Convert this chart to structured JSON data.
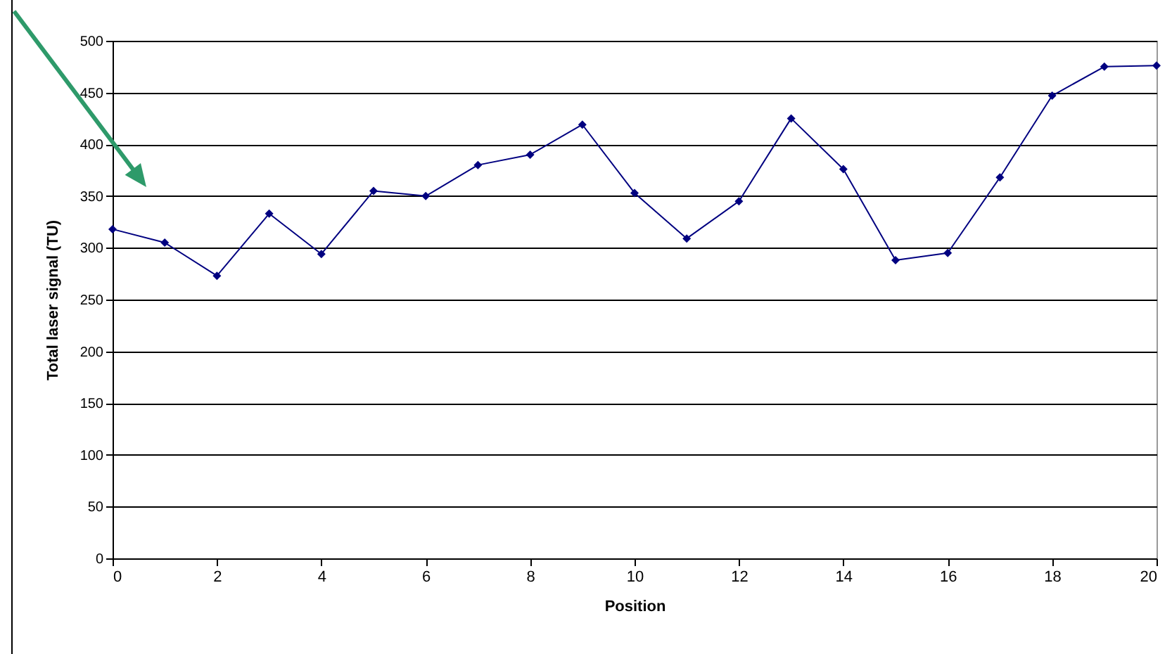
{
  "chart_data": {
    "type": "line",
    "xlabel": "Position",
    "ylabel": "Total laser signal (TU)",
    "x": [
      0,
      1,
      2,
      3,
      4,
      5,
      6,
      7,
      8,
      9,
      10,
      11,
      12,
      13,
      14,
      15,
      16,
      17,
      18,
      19,
      20
    ],
    "series": [
      {
        "color": "#000080",
        "values": [
          318,
          305,
          273,
          333,
          294,
          355,
          350,
          380,
          390,
          419,
          353,
          309,
          345,
          425,
          376,
          288,
          295,
          368,
          447,
          475,
          476
        ]
      }
    ],
    "xlim": [
      0,
      20
    ],
    "xticks": [
      0,
      2,
      4,
      6,
      8,
      10,
      12,
      14,
      16,
      18,
      20
    ],
    "ylim": [
      0,
      500
    ],
    "yticks": [
      0,
      50,
      100,
      150,
      200,
      250,
      300,
      350,
      400,
      450,
      500
    ],
    "grid": "y",
    "marker": "diamond",
    "line_style": "solid"
  }
}
